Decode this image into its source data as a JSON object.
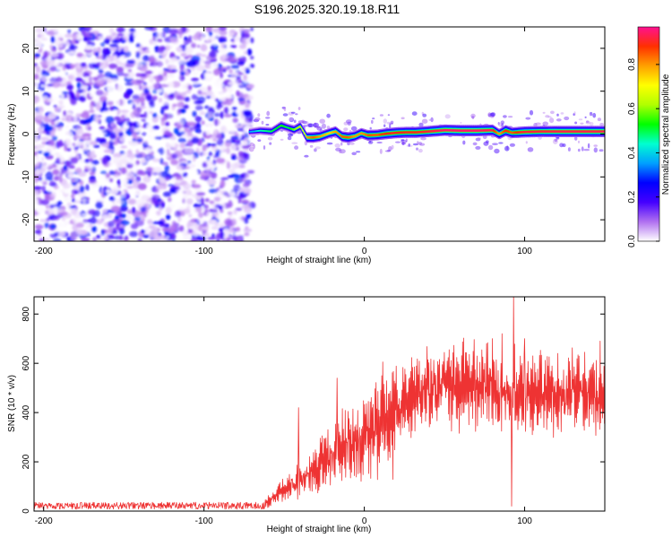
{
  "title": "S196.2025.320.19.18.R11",
  "chart_data": [
    {
      "type": "heatmap",
      "title": "S196.2025.320.19.18.R11",
      "xlabel": "Height of straight line (km)",
      "ylabel": "Frequency (Hz)",
      "xlim": [
        -206,
        150
      ],
      "ylim": [
        -25,
        25
      ],
      "xticks": [
        -200,
        -100,
        0,
        100
      ],
      "yticks": [
        -20,
        -10,
        0,
        10,
        20
      ],
      "colorbar": {
        "label": "Normalized spectral amplitude",
        "range": [
          0,
          0.97
        ],
        "ticks": [
          0.0,
          0.2,
          0.4,
          0.6,
          0.8
        ],
        "colors": [
          "#ffffff",
          "#b070f0",
          "#4400ff",
          "#0000ff",
          "#00a0ff",
          "#00ffd0",
          "#00ff00",
          "#b0ff00",
          "#ffff00",
          "#ffa000",
          "#ff3000",
          "#ff1090"
        ]
      },
      "noise_region": {
        "x": [
          -206,
          -72
        ],
        "amplitude_range": [
          0.0,
          0.3
        ]
      },
      "signal_ridge": {
        "x": [
          -72,
          -65,
          -58,
          -52,
          -48,
          -44,
          -40,
          -36,
          -32,
          -28,
          -22,
          -18,
          -14,
          -10,
          -6,
          -2,
          2,
          8,
          14,
          20,
          26,
          32,
          40,
          50,
          60,
          70,
          80,
          84,
          88,
          92,
          96,
          100,
          110,
          120,
          130,
          140,
          150
        ],
        "frequency_hz": [
          0.5,
          0.8,
          0.6,
          2.0,
          1.5,
          1.0,
          1.8,
          -0.8,
          -0.8,
          -0.6,
          0.2,
          0.6,
          -0.6,
          -0.8,
          -0.5,
          0.2,
          -0.3,
          -0.2,
          0.1,
          0.3,
          0.4,
          0.4,
          0.6,
          0.9,
          0.8,
          0.8,
          0.9,
          0.0,
          0.8,
          0.3,
          0.4,
          0.5,
          0.6,
          0.6,
          0.6,
          0.6,
          0.6
        ],
        "amplitude": [
          0.35,
          0.45,
          0.5,
          0.55,
          0.5,
          0.6,
          0.65,
          0.8,
          0.85,
          0.8,
          0.75,
          0.8,
          0.85,
          0.85,
          0.8,
          0.8,
          0.85,
          0.85,
          0.9,
          0.9,
          0.9,
          0.9,
          0.92,
          0.95,
          0.95,
          0.95,
          0.93,
          0.8,
          0.9,
          0.85,
          0.9,
          0.92,
          0.92,
          0.93,
          0.93,
          0.93,
          0.93
        ]
      }
    },
    {
      "type": "line",
      "xlabel": "Height of straight line (km)",
      "ylabel": "SNR (10 * v/v)",
      "xlim": [
        -206,
        150
      ],
      "ylim": [
        0,
        870
      ],
      "xticks": [
        -200,
        -100,
        0,
        100
      ],
      "yticks": [
        0,
        200,
        400,
        600,
        800
      ],
      "color": "#ee3333",
      "trend": {
        "x": [
          -206,
          -80,
          -70,
          -62,
          -55,
          -50,
          -45,
          -40,
          -35,
          -30,
          -25,
          -20,
          -15,
          -10,
          -5,
          0,
          5,
          10,
          15,
          20,
          25,
          30,
          35,
          40,
          50,
          60,
          70,
          80,
          90,
          100,
          110,
          120,
          130,
          140,
          150
        ],
        "y": [
          20,
          20,
          22,
          30,
          60,
          90,
          110,
          130,
          150,
          175,
          200,
          230,
          250,
          270,
          290,
          310,
          330,
          360,
          390,
          420,
          445,
          465,
          480,
          495,
          505,
          512,
          515,
          510,
          480,
          480,
          470,
          470,
          470,
          465,
          460
        ]
      },
      "spikes": [
        {
          "x": -41,
          "y": 420
        },
        {
          "x": -17,
          "y": 540
        },
        {
          "x": 80,
          "y": 700
        },
        {
          "x": 86,
          "y": 720
        },
        {
          "x": 93,
          "y": 870
        },
        {
          "x": 92,
          "y": 20
        },
        {
          "x": 100,
          "y": 700
        },
        {
          "x": 105,
          "y": 630
        },
        {
          "x": 147,
          "y": 690
        }
      ]
    }
  ]
}
